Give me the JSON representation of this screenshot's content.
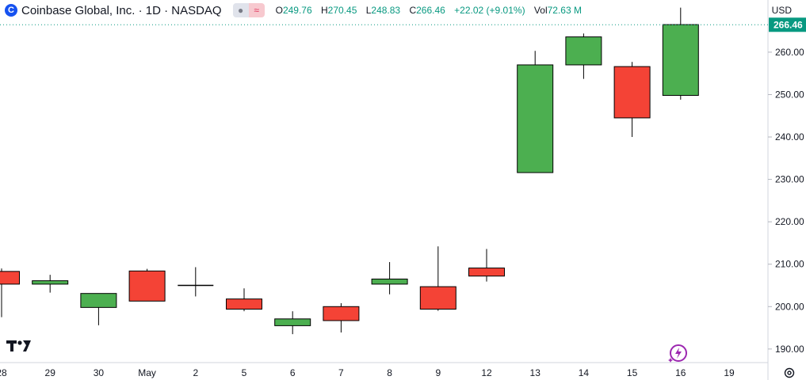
{
  "header": {
    "logo_letter": "C",
    "symbol": "Coinbase Global, Inc. · 1D · NASDAQ",
    "indicator_icons": [
      "visibility-icon",
      "wave-icon"
    ],
    "ohlc": {
      "open_label": "O",
      "open": "249.76",
      "high_label": "H",
      "high": "270.45",
      "low_label": "L",
      "low": "248.83",
      "close_label": "C",
      "close": "266.46",
      "change": "+22.02 (+9.01%)",
      "volume_label": "Vol",
      "volume": "72.63 M"
    }
  },
  "axis": {
    "currency": "USD",
    "last_price_label": "266.46"
  },
  "colors": {
    "up": "#4caf50",
    "down": "#f44336",
    "wick": "#000000",
    "last_price": "#089981"
  },
  "icons": {
    "brand": "tradingview-logo-icon",
    "bolt": "lightning-icon",
    "settings": "gear-icon"
  },
  "chart_data": {
    "type": "candlestick",
    "y_ticks": [
      190,
      200,
      210,
      220,
      230,
      240,
      250,
      260
    ],
    "ylim": [
      186.8,
      272.3
    ],
    "x_ticks": [
      "28",
      "29",
      "30",
      "May",
      "2",
      "5",
      "6",
      "7",
      "8",
      "9",
      "12",
      "13",
      "14",
      "15",
      "16",
      "19"
    ],
    "candles": [
      {
        "date": "28",
        "open": 208.3,
        "high": 209.0,
        "low": 197.5,
        "close": 205.3
      },
      {
        "date": "29",
        "open": 205.3,
        "high": 207.5,
        "low": 203.3,
        "close": 206.1
      },
      {
        "date": "30",
        "open": 199.8,
        "high": 203.1,
        "low": 195.6,
        "close": 203.1
      },
      {
        "date": "May",
        "open": 208.4,
        "high": 208.9,
        "low": 201.3,
        "close": 201.3
      },
      {
        "date": "2",
        "open": 205.0,
        "high": 209.3,
        "low": 202.4,
        "close": 204.8
      },
      {
        "date": "5",
        "open": 201.8,
        "high": 204.3,
        "low": 198.9,
        "close": 199.4
      },
      {
        "date": "6",
        "open": 195.5,
        "high": 198.9,
        "low": 193.5,
        "close": 197.1
      },
      {
        "date": "7",
        "open": 200.0,
        "high": 200.8,
        "low": 193.9,
        "close": 196.7
      },
      {
        "date": "8",
        "open": 205.3,
        "high": 210.5,
        "low": 202.9,
        "close": 206.5
      },
      {
        "date": "9",
        "open": 204.7,
        "high": 214.2,
        "low": 199.0,
        "close": 199.4
      },
      {
        "date": "12",
        "open": 209.1,
        "high": 213.6,
        "low": 205.9,
        "close": 207.2
      },
      {
        "date": "13",
        "open": 231.6,
        "high": 260.3,
        "low": 231.6,
        "close": 257.0
      },
      {
        "date": "14",
        "open": 257.0,
        "high": 264.4,
        "low": 253.7,
        "close": 263.6
      },
      {
        "date": "15",
        "open": 256.6,
        "high": 257.7,
        "low": 240.0,
        "close": 244.5
      },
      {
        "date": "16",
        "open": 249.8,
        "high": 270.5,
        "low": 248.8,
        "close": 266.5
      }
    ],
    "last_price": 266.46
  }
}
